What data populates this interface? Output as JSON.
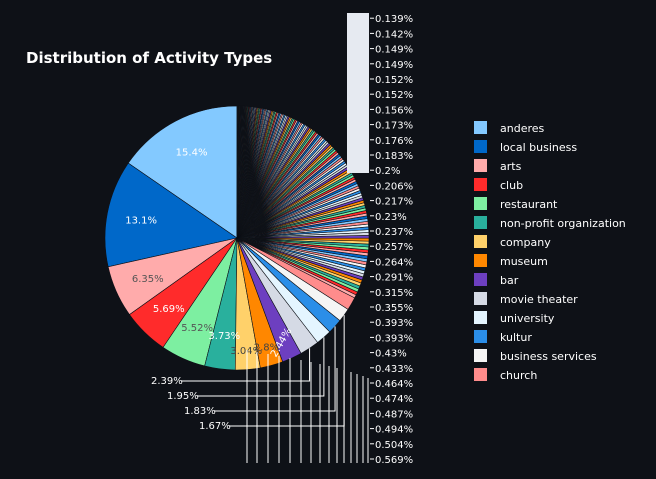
{
  "chart_data": {
    "type": "pie",
    "title": "Distribution of Activity Types",
    "legend_position": "right",
    "slices": [
      {
        "name": "anderes",
        "value": 15.4,
        "color": "#83c9ff",
        "label": "15.4%"
      },
      {
        "name": "local business",
        "value": 13.1,
        "color": "#0068c9",
        "label": "13.1%"
      },
      {
        "name": "arts",
        "value": 6.35,
        "color": "#ffabab",
        "label": "6.35%"
      },
      {
        "name": "club",
        "value": 5.69,
        "color": "#ff2b2b",
        "label": "5.69%"
      },
      {
        "name": "restaurant",
        "value": 5.52,
        "color": "#7defa1",
        "label": "5.52%"
      },
      {
        "name": "non-profit organization",
        "value": 3.73,
        "color": "#29b09d",
        "label": "3.73%"
      },
      {
        "name": "company",
        "value": 3.04,
        "color": "#ffd16a",
        "label": "3.04%"
      },
      {
        "name": "museum",
        "value": 2.8,
        "color": "#ff8700",
        "label": "2.8%"
      },
      {
        "name": "bar",
        "value": 2.44,
        "color": "#6d3fc0",
        "label": "2.44%"
      },
      {
        "name": "movie theater",
        "value": 2.39,
        "color": "#d5dae5",
        "label": "2.39%"
      },
      {
        "name": "university",
        "value": 1.95,
        "color": "#e4f5ff",
        "label": "1.95%"
      },
      {
        "name": "kultur",
        "value": 1.83,
        "color": "#2b8ee8",
        "label": "1.83%"
      },
      {
        "name": "business services",
        "value": 1.67,
        "color": "#f5f5f5",
        "label": "1.67%"
      },
      {
        "name": "church",
        "value": 1.6,
        "color": "#ff8c8c",
        "label": ""
      }
    ],
    "small_slice_labels": [
      "0.569%",
      "0.504%",
      "0.494%",
      "0.487%",
      "0.474%",
      "0.464%",
      "0.433%",
      "0.43%",
      "0.393%",
      "0.393%",
      "0.355%",
      "0.315%",
      "0.291%",
      "0.264%",
      "0.257%",
      "0.237%",
      "0.23%",
      "0.217%",
      "0.206%",
      "0.2%",
      "0.183%",
      "0.176%",
      "0.173%",
      "0.156%",
      "0.152%",
      "0.152%",
      "0.149%",
      "0.149%",
      "0.142%",
      "0.139%"
    ],
    "palette": [
      "#83c9ff",
      "#0068c9",
      "#ffabab",
      "#ff2b2b",
      "#7defa1",
      "#29b09d",
      "#ffd16a",
      "#ff8700",
      "#6d3fc0",
      "#d5dae5",
      "#e4f5ff",
      "#2b8ee8",
      "#f5f5f5",
      "#ff8c8c"
    ]
  }
}
